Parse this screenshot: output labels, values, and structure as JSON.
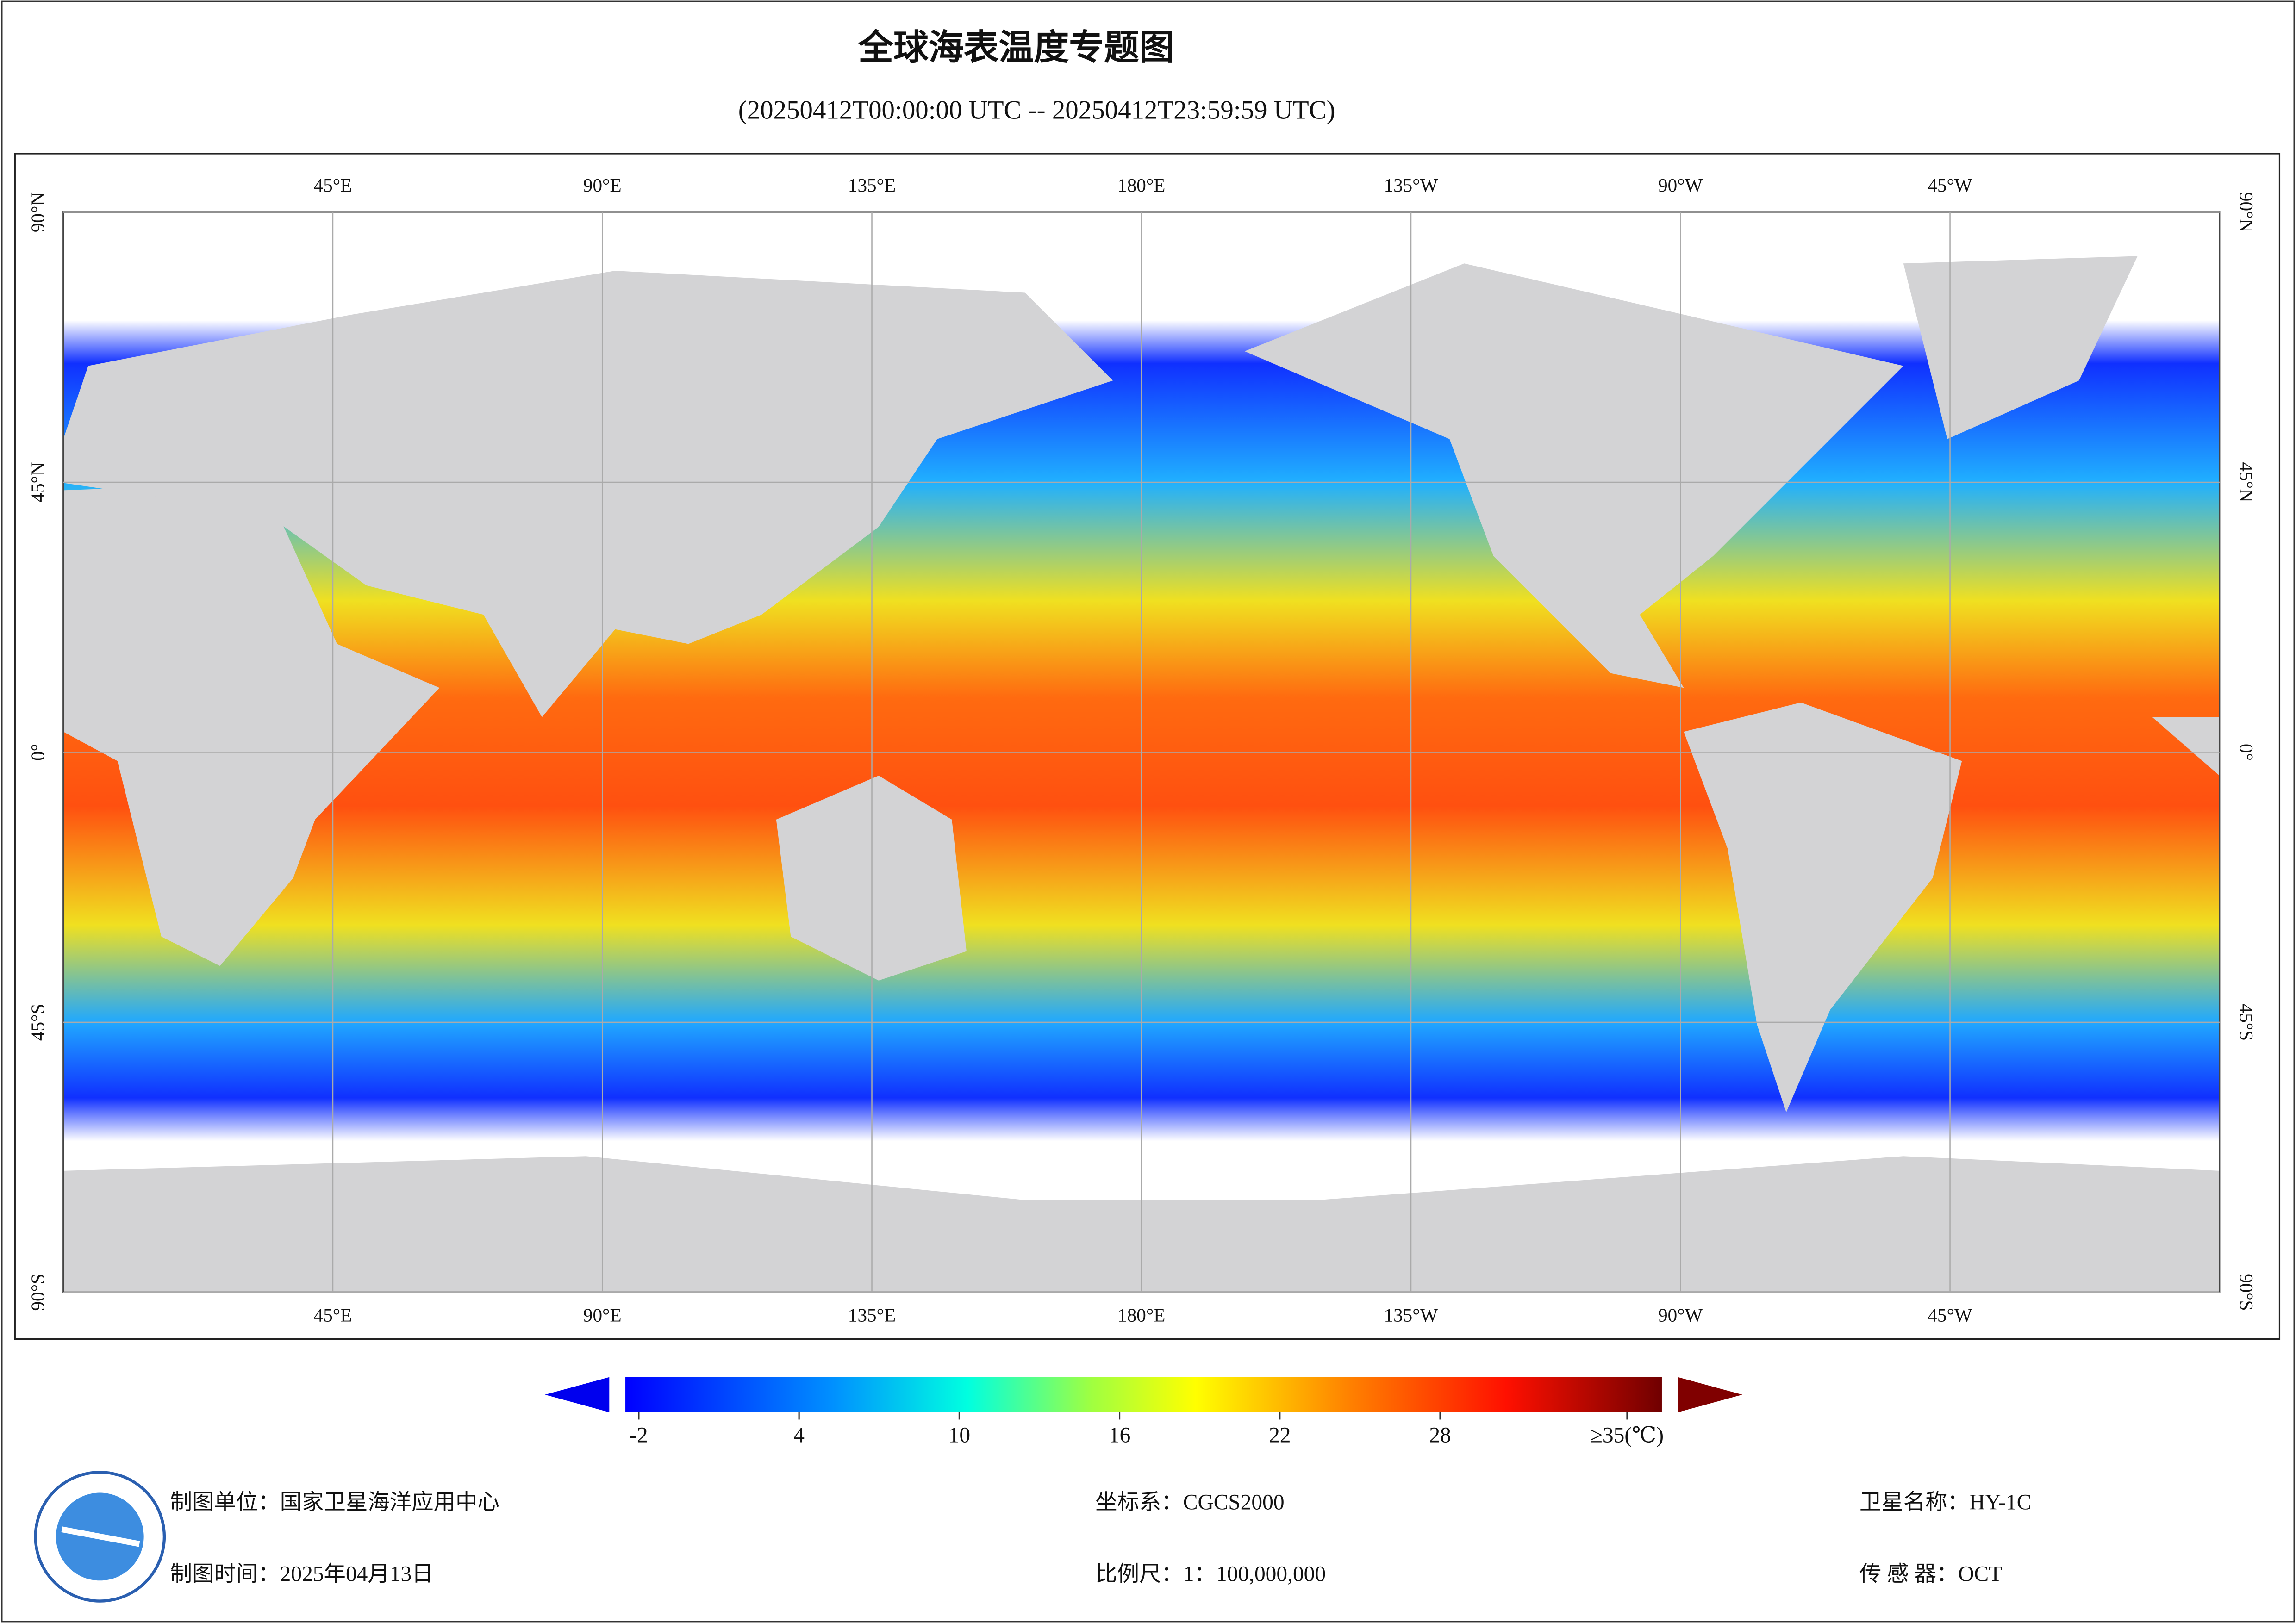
{
  "title": "全球海表温度专题图",
  "subtitle": "(20250412T00:00:00 UTC -- 20250412T23:59:59 UTC)",
  "map": {
    "lonlim": [
      0,
      360
    ],
    "latlim": [
      -90,
      90
    ],
    "lon_ticks": [
      {
        "value": 45,
        "label": "45°E"
      },
      {
        "value": 90,
        "label": "90°E"
      },
      {
        "value": 135,
        "label": "135°E"
      },
      {
        "value": 180,
        "label": "180°E"
      },
      {
        "value": 225,
        "label": "135°W"
      },
      {
        "value": 270,
        "label": "90°W"
      },
      {
        "value": 315,
        "label": "45°W"
      }
    ],
    "lat_ticks": [
      {
        "value": 90,
        "label": "90°N"
      },
      {
        "value": 45,
        "label": "45°N"
      },
      {
        "value": 0,
        "label": "0°"
      },
      {
        "value": -45,
        "label": "45°S"
      },
      {
        "value": -90,
        "label": "90°S"
      }
    ],
    "grid": true
  },
  "colorbar": {
    "lim": [
      -2.5,
      36.3
    ],
    "ticks": [
      -2,
      4,
      10,
      16,
      22,
      28,
      {
        "value": 35,
        "label": "≥35(℃)"
      }
    ]
  },
  "footer": {
    "unit": "制图单位：国家卫星海洋应用中心",
    "date": "制图时间：2025年04月13日",
    "crs": "坐标系：CGCS2000",
    "scale": "比例尺：1：100,000,000",
    "satellite": "卫星名称：HY-1C",
    "sensor": "传 感 器：OCT"
  }
}
